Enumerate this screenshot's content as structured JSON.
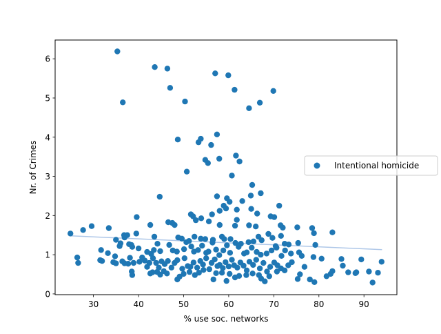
{
  "chart_data": {
    "type": "scatter",
    "xlabel": "% use soc. networks",
    "ylabel": "Nr. of Crimes",
    "xlim": [
      21.5,
      97.3
    ],
    "ylim": [
      -0.02,
      6.48
    ],
    "xticks": [
      30,
      40,
      50,
      60,
      70,
      80,
      90
    ],
    "yticks": [
      0,
      1,
      2,
      3,
      4,
      5,
      6
    ],
    "grid": false,
    "legend_position": "right (outside plot area)",
    "series": [
      {
        "name": "Intentional homicide",
        "type": "scatter",
        "color": "#1f77b4",
        "points": [
          [
            35.3,
            6.19
          ],
          [
            43.6,
            5.79
          ],
          [
            46.4,
            5.75
          ],
          [
            57.0,
            5.63
          ],
          [
            59.9,
            5.58
          ],
          [
            61.3,
            5.21
          ],
          [
            47.0,
            5.26
          ],
          [
            69.9,
            5.18
          ],
          [
            36.5,
            4.89
          ],
          [
            50.3,
            4.91
          ],
          [
            64.5,
            4.74
          ],
          [
            66.9,
            4.88
          ],
          [
            57.4,
            4.07
          ],
          [
            48.7,
            3.94
          ],
          [
            53.3,
            3.87
          ],
          [
            53.8,
            3.96
          ],
          [
            56.1,
            3.8
          ],
          [
            54.8,
            3.42
          ],
          [
            55.4,
            3.34
          ],
          [
            57.9,
            3.45
          ],
          [
            61.6,
            3.53
          ],
          [
            62.4,
            3.38
          ],
          [
            50.7,
            3.12
          ],
          [
            60.7,
            3.02
          ],
          [
            65.2,
            2.78
          ],
          [
            67.1,
            2.57
          ],
          [
            64.9,
            2.51
          ],
          [
            57.4,
            2.49
          ],
          [
            44.7,
            2.48
          ],
          [
            63.0,
            2.37
          ],
          [
            59.6,
            2.44
          ],
          [
            60.2,
            2.35
          ],
          [
            58.9,
            2.25
          ],
          [
            59.4,
            2.18
          ],
          [
            61.8,
            2.15
          ],
          [
            58.0,
            2.12
          ],
          [
            71.2,
            2.25
          ],
          [
            65.0,
            2.17
          ],
          [
            56.3,
            2.03
          ],
          [
            51.6,
            2.03
          ],
          [
            52.1,
            1.98
          ],
          [
            39.6,
            1.96
          ],
          [
            53.9,
            1.93
          ],
          [
            66.3,
            2.05
          ],
          [
            69.3,
            1.98
          ],
          [
            70.1,
            1.96
          ],
          [
            61.8,
            1.89
          ],
          [
            52.7,
            1.88
          ],
          [
            55.6,
            1.85
          ],
          [
            47.5,
            1.81
          ],
          [
            42.6,
            1.76
          ],
          [
            48.0,
            1.76
          ],
          [
            46.6,
            1.83
          ],
          [
            29.6,
            1.73
          ],
          [
            33.4,
            1.68
          ],
          [
            58.0,
            1.76
          ],
          [
            61.4,
            1.74
          ],
          [
            64.5,
            1.75
          ],
          [
            66.0,
            1.72
          ],
          [
            71.5,
            1.75
          ],
          [
            72.0,
            1.69
          ],
          [
            75.2,
            1.7
          ],
          [
            78.5,
            1.68
          ],
          [
            24.9,
            1.54
          ],
          [
            27.7,
            1.63
          ],
          [
            36.8,
            1.5
          ],
          [
            37.5,
            1.5
          ],
          [
            39.5,
            1.54
          ],
          [
            43.5,
            1.46
          ],
          [
            48.8,
            1.44
          ],
          [
            49.6,
            1.41
          ],
          [
            52.4,
            1.46
          ],
          [
            53.8,
            1.41
          ],
          [
            54.8,
            1.4
          ],
          [
            56.5,
            1.38
          ],
          [
            58.5,
            1.46
          ],
          [
            59.0,
            1.4
          ],
          [
            60.4,
            1.4
          ],
          [
            62.7,
            1.28
          ],
          [
            64.4,
            1.32
          ],
          [
            65.5,
            1.34
          ],
          [
            66.6,
            1.46
          ],
          [
            67.3,
            1.37
          ],
          [
            68.8,
            1.53
          ],
          [
            69.7,
            1.43
          ],
          [
            70.4,
            1.22
          ],
          [
            71.6,
            1.48
          ],
          [
            72.4,
            1.28
          ],
          [
            73.3,
            1.26
          ],
          [
            75.4,
            1.3
          ],
          [
            78.9,
            1.55
          ],
          [
            79.2,
            1.25
          ],
          [
            83.0,
            1.57
          ],
          [
            35.0,
            1.38
          ],
          [
            35.8,
            1.22
          ],
          [
            36.0,
            1.29
          ],
          [
            36.9,
            1.44
          ],
          [
            37.9,
            1.27
          ],
          [
            38.4,
            1.25
          ],
          [
            38.6,
            1.2
          ],
          [
            40.0,
            1.16
          ],
          [
            41.9,
            1.07
          ],
          [
            42.8,
            1.02
          ],
          [
            43.4,
            1.12
          ],
          [
            44.2,
            1.28
          ],
          [
            44.8,
            1.09
          ],
          [
            46.8,
            1.25
          ],
          [
            47.6,
            1.11
          ],
          [
            48.5,
            1.08
          ],
          [
            50.1,
            1.14
          ],
          [
            50.6,
            1.32
          ],
          [
            51.2,
            1.35
          ],
          [
            51.7,
            1.21
          ],
          [
            52.3,
            1.08
          ],
          [
            53.2,
            1.12
          ],
          [
            54.1,
            1.23
          ],
          [
            55.0,
            1.05
          ],
          [
            55.5,
            1.08
          ],
          [
            56.4,
            1.31
          ],
          [
            57.2,
            1.13
          ],
          [
            57.9,
            0.99
          ],
          [
            58.8,
            1.11
          ],
          [
            59.6,
            1.24
          ],
          [
            60.3,
            1.05
          ],
          [
            61.5,
            1.3
          ],
          [
            62.2,
            1.2
          ],
          [
            63.4,
            1.03
          ],
          [
            64.0,
            1.06
          ],
          [
            65.1,
            1.18
          ],
          [
            66.2,
            1.07
          ],
          [
            67.1,
            1.0
          ],
          [
            68.4,
            1.03
          ],
          [
            69.5,
            1.11
          ],
          [
            70.6,
            1.18
          ],
          [
            71.7,
            0.97
          ],
          [
            72.5,
            1.11
          ],
          [
            73.8,
            1.03
          ],
          [
            75.6,
            1.06
          ],
          [
            76.2,
            0.97
          ],
          [
            78.8,
            0.94
          ],
          [
            31.7,
            1.12
          ],
          [
            33.2,
            1.04
          ],
          [
            34.8,
            0.96
          ],
          [
            26.4,
            0.93
          ],
          [
            26.6,
            0.79
          ],
          [
            31.5,
            0.86
          ],
          [
            31.9,
            0.84
          ],
          [
            34.4,
            0.81
          ],
          [
            35.0,
            0.78
          ],
          [
            36.4,
            0.83
          ],
          [
            36.9,
            0.78
          ],
          [
            37.7,
            0.77
          ],
          [
            38.1,
            0.92
          ],
          [
            38.9,
            0.79
          ],
          [
            40.2,
            0.82
          ],
          [
            40.8,
            0.93
          ],
          [
            41.4,
            0.85
          ],
          [
            41.9,
            0.69
          ],
          [
            42.4,
            0.79
          ],
          [
            43.2,
            0.91
          ],
          [
            43.9,
            0.79
          ],
          [
            44.5,
            0.67
          ],
          [
            45.1,
            0.83
          ],
          [
            45.8,
            0.76
          ],
          [
            46.5,
            0.84
          ],
          [
            47.3,
            0.67
          ],
          [
            48.0,
            0.79
          ],
          [
            48.6,
            0.86
          ],
          [
            49.7,
            0.64
          ],
          [
            50.2,
            0.91
          ],
          [
            50.9,
            0.71
          ],
          [
            51.5,
            0.69
          ],
          [
            52.2,
            0.8
          ],
          [
            53.0,
            0.67
          ],
          [
            53.7,
            0.84
          ],
          [
            54.3,
            0.75
          ],
          [
            55.0,
            0.91
          ],
          [
            55.7,
            0.63
          ],
          [
            56.2,
            0.79
          ],
          [
            56.9,
            0.88
          ],
          [
            57.5,
            0.71
          ],
          [
            58.0,
            0.74
          ],
          [
            58.7,
            0.66
          ],
          [
            59.3,
            0.81
          ],
          [
            60.0,
            0.7
          ],
          [
            60.7,
            0.87
          ],
          [
            61.2,
            0.73
          ],
          [
            61.9,
            0.67
          ],
          [
            62.6,
            0.8
          ],
          [
            63.3,
            0.72
          ],
          [
            64.0,
            0.6
          ],
          [
            64.6,
            0.82
          ],
          [
            65.4,
            0.74
          ],
          [
            66.1,
            0.87
          ],
          [
            66.9,
            0.65
          ],
          [
            67.7,
            0.79
          ],
          [
            68.5,
            0.57
          ],
          [
            69.2,
            0.69
          ],
          [
            70.1,
            0.8
          ],
          [
            70.8,
            0.73
          ],
          [
            71.6,
            0.65
          ],
          [
            73.2,
            0.73
          ],
          [
            74.0,
            0.81
          ],
          [
            76.8,
            0.69
          ],
          [
            80.6,
            0.9
          ],
          [
            85.0,
            0.89
          ],
          [
            85.3,
            0.72
          ],
          [
            88.3,
            0.55
          ],
          [
            89.4,
            0.88
          ],
          [
            91.1,
            0.57
          ],
          [
            93.1,
            0.54
          ],
          [
            93.9,
            0.82
          ],
          [
            38.5,
            0.57
          ],
          [
            38.6,
            0.48
          ],
          [
            42.6,
            0.52
          ],
          [
            43.1,
            0.55
          ],
          [
            44.1,
            0.56
          ],
          [
            44.8,
            0.49
          ],
          [
            45.6,
            0.58
          ],
          [
            46.3,
            0.52
          ],
          [
            48.6,
            0.37
          ],
          [
            49.1,
            0.44
          ],
          [
            50.0,
            0.51
          ],
          [
            51.3,
            0.56
          ],
          [
            52.5,
            0.48
          ],
          [
            53.4,
            0.54
          ],
          [
            54.4,
            0.61
          ],
          [
            56.6,
            0.37
          ],
          [
            57.2,
            0.53
          ],
          [
            58.5,
            0.54
          ],
          [
            59.5,
            0.33
          ],
          [
            60.2,
            0.51
          ],
          [
            61.4,
            0.42
          ],
          [
            62.3,
            0.46
          ],
          [
            63.9,
            0.48
          ],
          [
            65.3,
            0.52
          ],
          [
            66.7,
            0.48
          ],
          [
            67.2,
            0.39
          ],
          [
            68.0,
            0.32
          ],
          [
            69.0,
            0.45
          ],
          [
            70.7,
            0.57
          ],
          [
            72.4,
            0.6
          ],
          [
            75.3,
            0.38
          ],
          [
            75.8,
            0.5
          ],
          [
            78.0,
            0.37
          ],
          [
            79.0,
            0.3
          ],
          [
            81.7,
            0.45
          ],
          [
            82.6,
            0.51
          ],
          [
            83.0,
            0.58
          ],
          [
            86.5,
            0.55
          ],
          [
            88.1,
            0.53
          ],
          [
            91.9,
            0.29
          ]
        ]
      },
      {
        "type": "line",
        "color": "#aec7e8",
        "x": [
          25,
          94
        ],
        "y": [
          1.48,
          1.13
        ]
      }
    ]
  }
}
